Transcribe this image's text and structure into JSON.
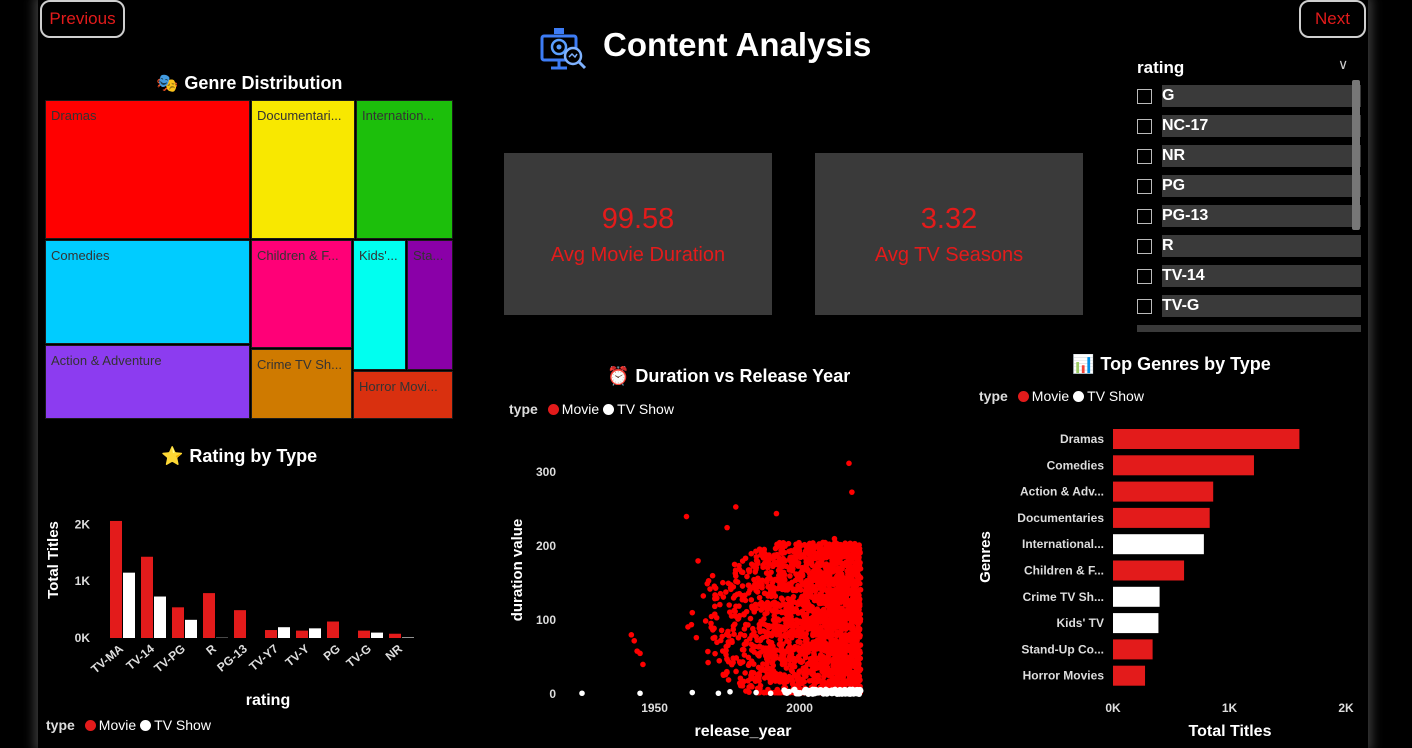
{
  "nav": {
    "previous": "Previous",
    "next": "Next"
  },
  "page_title": "Content Analysis",
  "colors": {
    "movie": "#e31b1b",
    "tv_show": "#ffffff",
    "accent": "#e31b1b",
    "card": "#3a3a3a"
  },
  "genre_distribution": {
    "title": "Genre Distribution",
    "tiles": [
      {
        "label": "Dramas",
        "color": "#ff0000"
      },
      {
        "label": "Documentari...",
        "color": "#f8e800"
      },
      {
        "label": "Internation...",
        "color": "#1cbf0b"
      },
      {
        "label": "Comedies",
        "color": "#00ccff"
      },
      {
        "label": "Children & F...",
        "color": "#ff0077"
      },
      {
        "label": "Kids'...",
        "color": "#00fff0"
      },
      {
        "label": "Sta...",
        "color": "#8a00a8"
      },
      {
        "label": "Action & Adventure",
        "color": "#8c3cf0"
      },
      {
        "label": "Crime TV Sh...",
        "color": "#cf7a00"
      },
      {
        "label": "Horror Movi...",
        "color": "#d9300f"
      }
    ]
  },
  "kpis": [
    {
      "value": "99.58",
      "label": "Avg Movie Duration"
    },
    {
      "value": "3.32",
      "label": "Avg TV Seasons"
    }
  ],
  "rating_slicer": {
    "title": "rating",
    "items": [
      "G",
      "NC-17",
      "NR",
      "PG",
      "PG-13",
      "R",
      "TV-14",
      "TV-G"
    ]
  },
  "rating_by_type": {
    "title": "Rating by Type",
    "legend": {
      "label": "type",
      "movie": "Movie",
      "tv": "TV Show"
    }
  },
  "duration_vs_year": {
    "title": "Duration vs Release Year",
    "legend": {
      "label": "type",
      "movie": "Movie",
      "tv": "TV Show"
    }
  },
  "top_genres": {
    "title": "Top Genres by Type",
    "legend": {
      "label": "type",
      "movie": "Movie",
      "tv": "TV Show"
    }
  },
  "chart_data": [
    {
      "id": "rating_by_type",
      "type": "bar",
      "title": "Rating by Type",
      "xlabel": "rating",
      "ylabel": "Total Titles",
      "categories": [
        "TV-MA",
        "TV-14",
        "TV-PG",
        "R",
        "PG-13",
        "TV-Y7",
        "TV-Y",
        "PG",
        "TV-G",
        "NR"
      ],
      "series": [
        {
          "name": "Movie",
          "color": "#e31b1b",
          "values": [
            2060,
            1430,
            540,
            790,
            490,
            140,
            130,
            290,
            130,
            75
          ]
        },
        {
          "name": "TV Show",
          "color": "#ffffff",
          "values": [
            1150,
            730,
            320,
            5,
            0,
            190,
            170,
            0,
            95,
            10
          ]
        }
      ],
      "yticks": [
        "0K",
        "1K",
        "2K"
      ],
      "ylim": [
        0,
        2200
      ]
    },
    {
      "id": "duration_vs_year",
      "type": "scatter",
      "title": "Duration vs Release Year",
      "xlabel": "release_year",
      "ylabel": "duration value",
      "xticks": [
        1950,
        2000
      ],
      "yticks": [
        0,
        100,
        200,
        300
      ],
      "xlim": [
        1925,
        2027
      ],
      "ylim": [
        0,
        330
      ],
      "series": [
        {
          "name": "Movie",
          "color": "#e31b1b",
          "points": [
            [
              2017,
              312
            ],
            [
              2018,
              273
            ],
            [
              1942,
              80
            ],
            [
              1943,
              72
            ],
            [
              1944,
              58
            ],
            [
              1945,
              55
            ],
            [
              1946,
              40
            ],
            [
              1961,
              240
            ],
            [
              1978,
              253
            ],
            [
              1992,
              244
            ],
            [
              1975,
              225
            ],
            [
              1965,
              180
            ],
            [
              1963,
              110
            ],
            [
              1970,
              160
            ],
            [
              1980,
              165
            ],
            [
              1988,
              190
            ],
            [
              1995,
              200
            ],
            [
              2003,
              198
            ],
            [
              2008,
              205
            ],
            [
              2012,
              210
            ],
            [
              2016,
              200
            ],
            [
              1997,
              170
            ],
            [
              2001,
              150
            ],
            [
              2006,
              130
            ],
            [
              2010,
              120
            ],
            [
              2014,
              100
            ],
            [
              2018,
              90
            ],
            [
              2019,
              80
            ],
            [
              1985,
              140
            ],
            [
              1990,
              120
            ],
            [
              2000,
              110
            ],
            [
              2005,
              95
            ],
            [
              2011,
              85
            ],
            [
              2015,
              70
            ],
            [
              2019,
              40
            ],
            [
              2020,
              20
            ]
          ]
        },
        {
          "name": "TV Show",
          "color": "#ffffff",
          "points": [
            [
              1925,
              1
            ],
            [
              1945,
              1
            ],
            [
              1963,
              2
            ],
            [
              1972,
              1
            ],
            [
              1976,
              3
            ],
            [
              1985,
              2
            ],
            [
              1990,
              1
            ],
            [
              1995,
              2
            ],
            [
              2000,
              1
            ],
            [
              2005,
              2
            ],
            [
              2010,
              3
            ],
            [
              2015,
              4
            ],
            [
              2018,
              5
            ],
            [
              2020,
              3
            ]
          ]
        }
      ]
    },
    {
      "id": "top_genres",
      "type": "bar",
      "orientation": "horizontal",
      "title": "Top Genres by Type",
      "xlabel": "Total Titles",
      "ylabel": "Genres",
      "categories": [
        "Dramas",
        "Comedies",
        "Action & Adv...",
        "Documentaries",
        "International...",
        "Children & F...",
        "Crime TV Sh...",
        "Kids' TV",
        "Stand-Up Co...",
        "Horror Movies"
      ],
      "values": [
        1600,
        1210,
        860,
        830,
        780,
        610,
        400,
        390,
        340,
        275
      ],
      "types": [
        "Movie",
        "Movie",
        "Movie",
        "Movie",
        "TV Show",
        "Movie",
        "TV Show",
        "TV Show",
        "Movie",
        "Movie"
      ],
      "xticks": [
        "0K",
        "1K",
        "2K"
      ],
      "xlim": [
        0,
        2000
      ]
    }
  ]
}
